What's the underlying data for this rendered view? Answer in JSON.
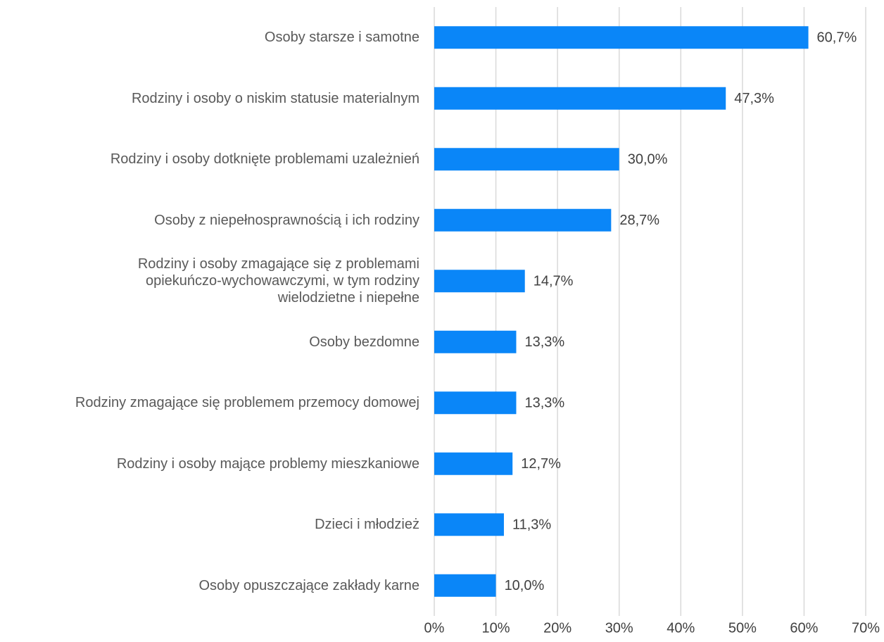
{
  "chart_data": {
    "type": "barh",
    "categories": [
      "Osoby starsze i samotne",
      "Rodziny i osoby o niskim statusie materialnym",
      "Rodziny i osoby dotknięte problemami uzależnień",
      "Osoby z niepełnosprawnością i ich rodziny",
      "Rodziny i osoby zmagające się z problemami\nopiekuńczo-wychowawczymi, w tym rodziny\nwielodzietne i niepełne",
      "Osoby bezdomne",
      "Rodziny zmagające się problemem przemocy domowej",
      "Rodziny i osoby mające problemy mieszkaniowe",
      "Dzieci i młodzież",
      "Osoby opuszczające zakłady karne"
    ],
    "values": [
      60.7,
      47.3,
      30.0,
      28.7,
      14.7,
      13.3,
      13.3,
      12.7,
      11.3,
      10.0
    ],
    "value_labels": [
      "60,7%",
      "47,3%",
      "30,0%",
      "28,7%",
      "14,7%",
      "13,3%",
      "13,3%",
      "12,7%",
      "11,3%",
      "10,0%"
    ],
    "color": "#0a86f8",
    "xlim": [
      0,
      70
    ],
    "xticks": [
      {
        "value": 0,
        "label": "0%"
      },
      {
        "value": 10,
        "label": "10%"
      },
      {
        "value": 20,
        "label": "20%"
      },
      {
        "value": 30,
        "label": "30%"
      },
      {
        "value": 40,
        "label": "40%"
      },
      {
        "value": 50,
        "label": "50%"
      },
      {
        "value": 60,
        "label": "60%"
      },
      {
        "value": 70,
        "label": "70%"
      }
    ],
    "grid": true
  }
}
